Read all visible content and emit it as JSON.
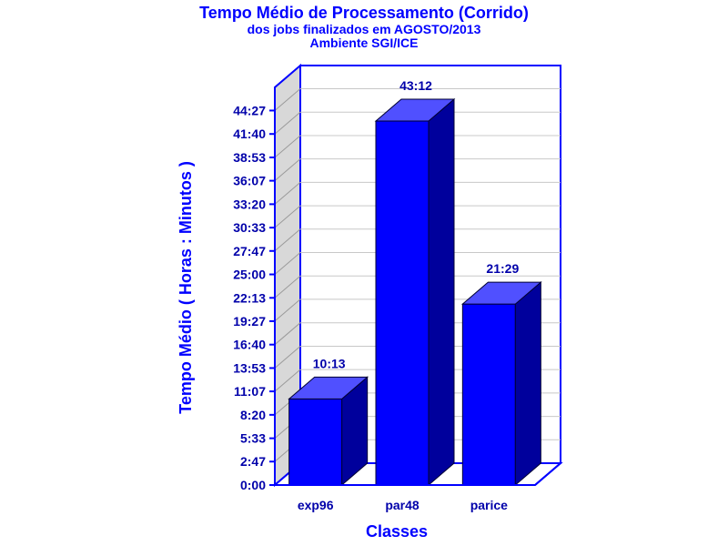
{
  "chart_data": {
    "type": "bar",
    "title": "Tempo Médio de Processamento (Corrido)",
    "subtitle_lines": [
      "dos jobs finalizados em AGOSTO/2013",
      "Ambiente SGI/ICE"
    ],
    "xlabel": "Classes",
    "ylabel": "Tempo Médio ( Horas : Minutos )",
    "categories": [
      "exp96",
      "par48",
      "parice"
    ],
    "values": [
      10.22,
      43.2,
      21.48
    ],
    "value_labels": [
      "10:13",
      "43:12",
      "21:29"
    ],
    "y_ticks": [
      {
        "value": 0,
        "label": "0:00"
      },
      {
        "value": 2.783,
        "label": "2:47"
      },
      {
        "value": 5.55,
        "label": "5:33"
      },
      {
        "value": 8.333,
        "label": "8:20"
      },
      {
        "value": 11.117,
        "label": "11:07"
      },
      {
        "value": 13.883,
        "label": "13:53"
      },
      {
        "value": 16.667,
        "label": "16:40"
      },
      {
        "value": 19.45,
        "label": "19:27"
      },
      {
        "value": 22.217,
        "label": "22:13"
      },
      {
        "value": 25.0,
        "label": "25:00"
      },
      {
        "value": 27.783,
        "label": "27:47"
      },
      {
        "value": 30.55,
        "label": "30:33"
      },
      {
        "value": 33.333,
        "label": "33:20"
      },
      {
        "value": 36.117,
        "label": "36:07"
      },
      {
        "value": 38.883,
        "label": "38:53"
      },
      {
        "value": 41.667,
        "label": "41:40"
      },
      {
        "value": 44.45,
        "label": "44:27"
      }
    ],
    "ylim": [
      0,
      47.2
    ],
    "grid": true,
    "colors": {
      "bar_front": "#0000ff",
      "bar_top": "#5050ff",
      "bar_side": "#00009c",
      "axis": "#0000ff",
      "wall": "#d8d8d8",
      "text": "#0000aa"
    }
  }
}
